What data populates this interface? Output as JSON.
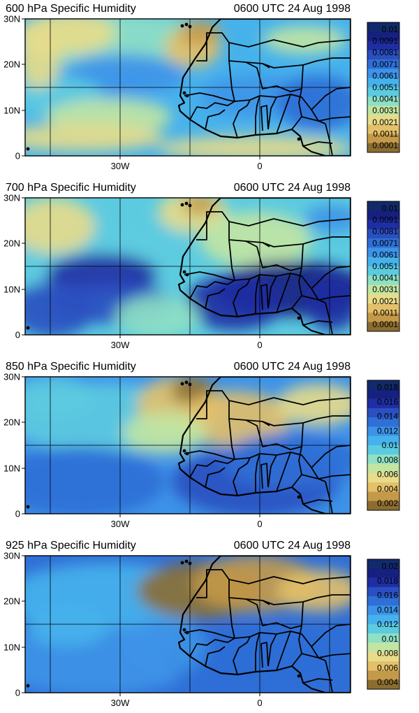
{
  "figure": {
    "panels": [
      {
        "title_left": "600 hPa Specific Humidity",
        "title_right": "0600 UTC 24 Aug 1998",
        "legend_labels": [
          "0.01",
          "0.0091",
          "0.0081",
          "0.0071",
          "0.0061",
          "0.0051",
          "0.0041",
          "0.0031",
          "0.0021",
          "0.0011",
          "0.0001"
        ]
      },
      {
        "title_left": "700 hPa Specific Humidity",
        "title_right": "0600 UTC 24 Aug 1998",
        "legend_labels": [
          "0.01",
          "0.0091",
          "0.0081",
          "0.0071",
          "0.0061",
          "0.0051",
          "0.0041",
          "0.0031",
          "0.0021",
          "0.0011",
          "0.0001"
        ]
      },
      {
        "title_left": "850 hPa Specific Humidity",
        "title_right": "0600 UTC 24 Aug 1998",
        "legend_labels": [
          "0.018",
          "0.016",
          "0.014",
          "0.012",
          "0.01",
          "0.008",
          "0.006",
          "0.004",
          "0.002"
        ]
      },
      {
        "title_left": "925 hPa Specific Humidity",
        "title_right": "0600 UTC 24 Aug 1998",
        "legend_labels": [
          "0.02",
          "0.018",
          "0.016",
          "0.014",
          "0.012",
          "0.01",
          "0.008",
          "0.006",
          "0.004"
        ]
      }
    ],
    "lat_ticks": [
      "30N",
      "20N",
      "10N",
      "0"
    ],
    "lon_ticks": [
      "30W",
      "0"
    ],
    "colormap": [
      "#8c6d31",
      "#c49a4a",
      "#e3c06a",
      "#e8dc8a",
      "#c3e5a2",
      "#8fe0c4",
      "#5ccbe0",
      "#46b2ec",
      "#3d93e8",
      "#2f6fd6",
      "#2a4fc0",
      "#1f2ea3",
      "#16207f",
      "#122a6a"
    ]
  }
}
